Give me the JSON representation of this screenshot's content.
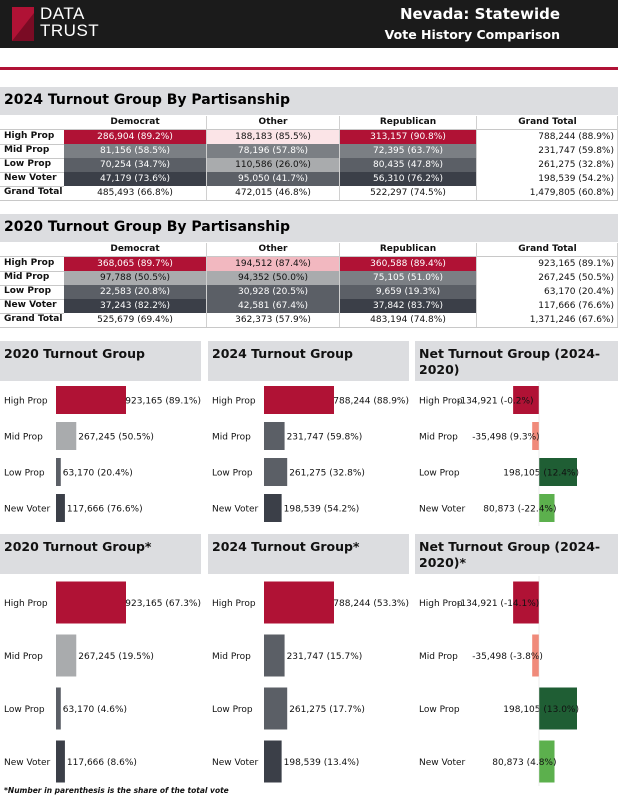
{
  "header": {
    "logo_line1": "DATA",
    "logo_line2": "TRUST",
    "title": "Nevada: Statewide",
    "subtitle": "Vote History Comparison"
  },
  "table_columns": [
    "Democrat",
    "Other",
    "Republican",
    "Grand Total"
  ],
  "colors": {
    "dark_red": "#b01235",
    "pink": "#f2b8c0",
    "light_pink": "#fbe4e7",
    "gray_light": "#a9abad",
    "gray_mid": "#7b7f84",
    "gray_dark": "#5b5f66",
    "gray_darker": "#3b3f48",
    "salmon": "#f08a7a",
    "dark_green": "#1f5e34",
    "light_green": "#5cb04d"
  },
  "table_2024": {
    "title": "2024 Turnout Group By Partisanship",
    "rows": [
      {
        "label": "High Prop",
        "cells": [
          "286,904 (89.2%)",
          "188,183 (85.5%)",
          "313,157 (90.8%)",
          "788,244 (88.9%)"
        ],
        "fills": [
          "#b01235",
          "#fbe4e7",
          "#b01235",
          "#ffffff"
        ],
        "text": [
          "#ffffff",
          "#111111",
          "#ffffff",
          "#111111"
        ]
      },
      {
        "label": "Mid Prop",
        "cells": [
          "81,156 (58.5%)",
          "78,196 (57.8%)",
          "72,395 (63.7%)",
          "231,747 (59.8%)"
        ],
        "fills": [
          "#7b7f84",
          "#7b7f84",
          "#7b7f84",
          "#ffffff"
        ],
        "text": [
          "#ffffff",
          "#ffffff",
          "#ffffff",
          "#111111"
        ]
      },
      {
        "label": "Low Prop",
        "cells": [
          "70,254 (34.7%)",
          "110,586 (26.0%)",
          "80,435 (47.8%)",
          "261,275 (32.8%)"
        ],
        "fills": [
          "#5b5f66",
          "#a9abad",
          "#5b5f66",
          "#ffffff"
        ],
        "text": [
          "#ffffff",
          "#111111",
          "#ffffff",
          "#111111"
        ]
      },
      {
        "label": "New Voter",
        "cells": [
          "47,179 (73.6%)",
          "95,050 (41.7%)",
          "56,310 (76.2%)",
          "198,539 (54.2%)"
        ],
        "fills": [
          "#3b3f48",
          "#5b5f66",
          "#3b3f48",
          "#ffffff"
        ],
        "text": [
          "#ffffff",
          "#ffffff",
          "#ffffff",
          "#111111"
        ]
      },
      {
        "label": "Grand Total",
        "cells": [
          "485,493 (66.8%)",
          "472,015 (46.8%)",
          "522,297 (74.5%)",
          "1,479,805 (60.8%)"
        ],
        "fills": [
          "#ffffff",
          "#ffffff",
          "#ffffff",
          "#ffffff"
        ],
        "text": [
          "#111111",
          "#111111",
          "#111111",
          "#111111"
        ]
      }
    ]
  },
  "table_2020": {
    "title": "2020 Turnout Group By Partisanship",
    "rows": [
      {
        "label": "High Prop",
        "cells": [
          "368,065 (89.7%)",
          "194,512 (87.4%)",
          "360,588 (89.4%)",
          "923,165 (89.1%)"
        ],
        "fills": [
          "#b01235",
          "#f2b8c0",
          "#b01235",
          "#ffffff"
        ],
        "text": [
          "#ffffff",
          "#111111",
          "#ffffff",
          "#111111"
        ]
      },
      {
        "label": "Mid Prop",
        "cells": [
          "97,788 (50.5%)",
          "94,352 (50.0%)",
          "75,105 (51.0%)",
          "267,245 (50.5%)"
        ],
        "fills": [
          "#a9abad",
          "#a9abad",
          "#7b7f84",
          "#ffffff"
        ],
        "text": [
          "#111111",
          "#111111",
          "#ffffff",
          "#111111"
        ]
      },
      {
        "label": "Low Prop",
        "cells": [
          "22,583 (20.8%)",
          "30,928 (20.5%)",
          "9,659 (19.3%)",
          "63,170 (20.4%)"
        ],
        "fills": [
          "#5b5f66",
          "#5b5f66",
          "#5b5f66",
          "#ffffff"
        ],
        "text": [
          "#ffffff",
          "#ffffff",
          "#ffffff",
          "#111111"
        ]
      },
      {
        "label": "New Voter",
        "cells": [
          "37,243 (82.2%)",
          "42,581 (67.4%)",
          "37,842 (83.7%)",
          "117,666 (76.6%)"
        ],
        "fills": [
          "#3b3f48",
          "#5b5f66",
          "#3b3f48",
          "#ffffff"
        ],
        "text": [
          "#ffffff",
          "#ffffff",
          "#ffffff",
          "#111111"
        ]
      },
      {
        "label": "Grand Total",
        "cells": [
          "525,679 (69.4%)",
          "362,373 (57.9%)",
          "483,194 (74.8%)",
          "1,371,246 (67.6%)"
        ],
        "fills": [
          "#ffffff",
          "#ffffff",
          "#ffffff",
          "#ffffff"
        ],
        "text": [
          "#111111",
          "#111111",
          "#111111",
          "#111111"
        ]
      }
    ]
  },
  "footnote": "*Number in parenthesis is the share of the total vote",
  "chart_data": [
    {
      "type": "bar",
      "orientation": "horizontal",
      "title": "2020 Turnout Group",
      "categories": [
        "High Prop",
        "Mid Prop",
        "Low Prop",
        "New Voter"
      ],
      "values": [
        923165,
        267245,
        63170,
        117666
      ],
      "labels": [
        "923,165 (89.1%)",
        "267,245 (50.5%)",
        "63,170 (20.4%)",
        "117,666 (76.6%)"
      ],
      "colors": [
        "#b01235",
        "#a9abad",
        "#5b5f66",
        "#3b3f48"
      ]
    },
    {
      "type": "bar",
      "orientation": "horizontal",
      "title": "2024 Turnout Group",
      "categories": [
        "High Prop",
        "Mid Prop",
        "Low Prop",
        "New Voter"
      ],
      "values": [
        788244,
        231747,
        261275,
        198539
      ],
      "labels": [
        "788,244 (88.9%)",
        "231,747 (59.8%)",
        "261,275 (32.8%)",
        "198,539 (54.2%)"
      ],
      "colors": [
        "#b01235",
        "#5b5f66",
        "#5b5f66",
        "#3b3f48"
      ]
    },
    {
      "type": "bar",
      "orientation": "horizontal",
      "title": "Net Turnout Group (2024-2020)",
      "categories": [
        "High Prop",
        "Mid Prop",
        "Low Prop",
        "New Voter"
      ],
      "values": [
        -134921,
        -35498,
        198105,
        80873
      ],
      "labels": [
        "-134,921 (-0.2%)",
        "-35,498 (9.3%)",
        "198,105 (12.4%)",
        "80,873 (-22.4%)"
      ],
      "colors": [
        "#b01235",
        "#f08a7a",
        "#1f5e34",
        "#5cb04d"
      ]
    },
    {
      "type": "bar",
      "orientation": "horizontal",
      "title": "2020 Turnout Group*",
      "categories": [
        "High Prop",
        "Mid Prop",
        "Low Prop",
        "New Voter"
      ],
      "values": [
        923165,
        267245,
        63170,
        117666
      ],
      "labels": [
        "923,165 (67.3%)",
        "267,245 (19.5%)",
        "63,170 (4.6%)",
        "117,666 (8.6%)"
      ],
      "colors": [
        "#b01235",
        "#a9abad",
        "#5b5f66",
        "#3b3f48"
      ]
    },
    {
      "type": "bar",
      "orientation": "horizontal",
      "title": "2024 Turnout Group*",
      "categories": [
        "High Prop",
        "Mid Prop",
        "Low Prop",
        "New Voter"
      ],
      "values": [
        788244,
        231747,
        261275,
        198539
      ],
      "labels": [
        "788,244 (53.3%)",
        "231,747 (15.7%)",
        "261,275 (17.7%)",
        "198,539 (13.4%)"
      ],
      "colors": [
        "#b01235",
        "#5b5f66",
        "#5b5f66",
        "#3b3f48"
      ]
    },
    {
      "type": "bar",
      "orientation": "horizontal",
      "title": "Net Turnout Group (2024-2020)*",
      "categories": [
        "High Prop",
        "Mid Prop",
        "Low Prop",
        "New Voter"
      ],
      "values": [
        -134921,
        -35498,
        198105,
        80873
      ],
      "labels": [
        "-134,921 (-14.1%)",
        "-35,498 (-3.8%)",
        "198,105 (13.0%)",
        "80,873 (4.8%)"
      ],
      "colors": [
        "#b01235",
        "#f08a7a",
        "#1f5e34",
        "#5cb04d"
      ]
    }
  ]
}
